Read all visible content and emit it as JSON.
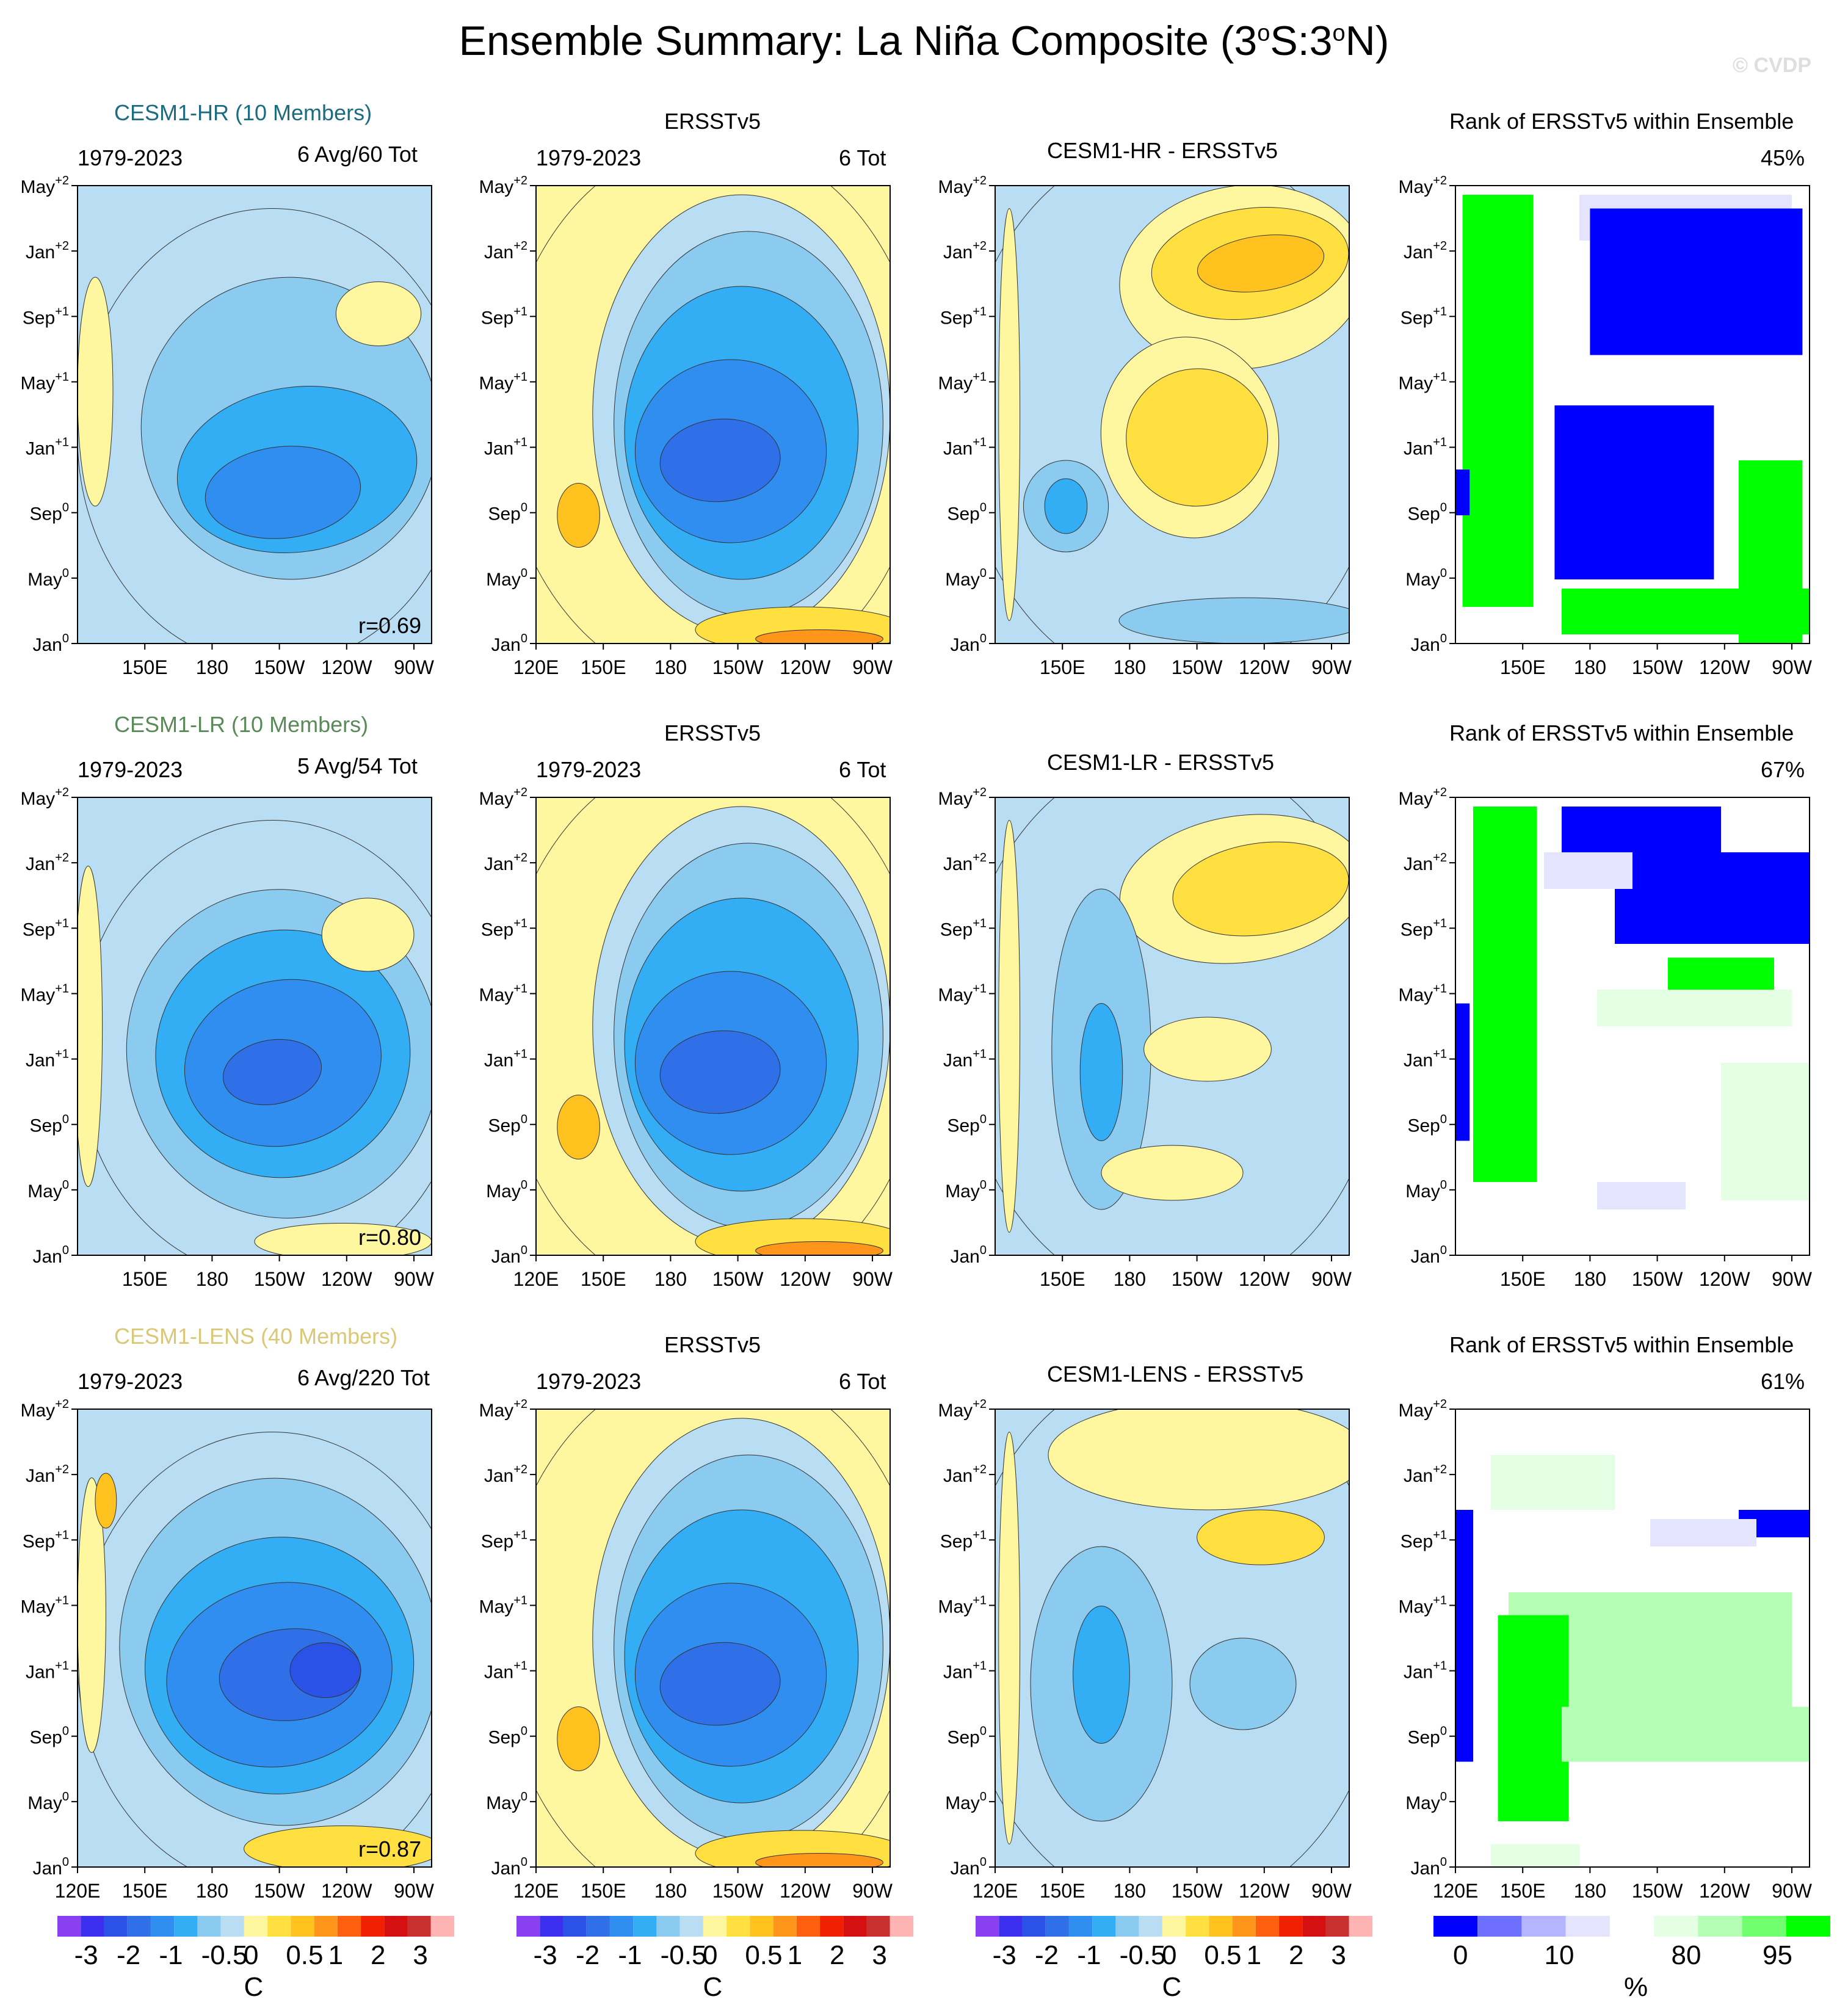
{
  "title_main": "Ensemble Summary: La Niña Composite (3",
  "title_sup1": "o",
  "title_mid": "S:3",
  "title_sup2": "o",
  "title_end": "N)",
  "watermark": "© CVDP",
  "colors": {
    "diverging": [
      "#8a3ff0",
      "#3d2ff0",
      "#2b52e6",
      "#2f6fe8",
      "#2f8ef0",
      "#33aef5",
      "#8ccbf0",
      "#b9def3",
      "#fff7a0",
      "#ffe040",
      "#ffc21f",
      "#ff951a",
      "#ff6010",
      "#f02000",
      "#d41010",
      "#c83030",
      "#ffb4b4"
    ],
    "rank": [
      "#0000ff",
      "#6f6fff",
      "#b4b4ff",
      "#e4e4ff",
      "#ffffff",
      "#e4ffe4",
      "#b4ffb4",
      "#6fff6f",
      "#00ff00"
    ],
    "ensemble_label_hr": "#1c6b80",
    "ensemble_label_lr": "#5a8a5a",
    "ensemble_label_lens": "#d8c878"
  },
  "y_ticks": [
    {
      "b": "Jan",
      "s": "0"
    },
    {
      "b": "May",
      "s": "0"
    },
    {
      "b": "Sep",
      "s": "0"
    },
    {
      "b": "Jan",
      "s": "+1"
    },
    {
      "b": "May",
      "s": "+1"
    },
    {
      "b": "Sep",
      "s": "+1"
    },
    {
      "b": "Jan",
      "s": "+2"
    },
    {
      "b": "May",
      "s": "+2"
    }
  ],
  "x_ticks_full": [
    "120E",
    "150E",
    "180",
    "150W",
    "120W",
    "90W"
  ],
  "x_ticks_short": [
    "150E",
    "180",
    "150W",
    "120W",
    "90W"
  ],
  "rows": [
    {
      "ensemble": {
        "label": "CESM1-HR (10 Members)",
        "period": "1979-2023",
        "count": "6 Avg/60 Tot",
        "r": "r=0.69"
      },
      "obs": {
        "title": "ERSSTv5",
        "period": "1979-2023",
        "count": "6 Tot"
      },
      "diff": {
        "title": "CESM1-HR - ERSSTv5"
      },
      "rank": {
        "title": "Rank of ERSSTv5 within Ensemble",
        "pct": "45%"
      }
    },
    {
      "ensemble": {
        "label": "CESM1-LR (10 Members)",
        "period": "1979-2023",
        "count": "5 Avg/54 Tot",
        "r": "r=0.80"
      },
      "obs": {
        "title": "ERSSTv5",
        "period": "1979-2023",
        "count": "6 Tot"
      },
      "diff": {
        "title": "CESM1-LR - ERSSTv5"
      },
      "rank": {
        "title": "Rank of ERSSTv5 within Ensemble",
        "pct": "67%"
      }
    },
    {
      "ensemble": {
        "label": "CESM1-LENS (40 Members)",
        "period": "1979-2023",
        "count": "6 Avg/220 Tot",
        "r": "r=0.87"
      },
      "obs": {
        "title": "ERSSTv5",
        "period": "1979-2023",
        "count": "6 Tot"
      },
      "diff": {
        "title": "CESM1-LENS - ERSSTv5"
      },
      "rank": {
        "title": "Rank of ERSSTv5 within Ensemble",
        "pct": "61%"
      }
    }
  ],
  "colorbars": [
    {
      "labels": [
        "-3",
        "-2",
        "-1",
        "-0.5",
        "0",
        "0.5",
        "1",
        "2",
        "3"
      ],
      "unit": "C"
    },
    {
      "labels": [
        "-3",
        "-2",
        "-1",
        "-0.5",
        "0",
        "0.5",
        "1",
        "2",
        "3"
      ],
      "unit": "C"
    },
    {
      "labels": [
        "-3",
        "-2",
        "-1",
        "-0.5",
        "0",
        "0.5",
        "1",
        "2",
        "3"
      ],
      "unit": "C"
    },
    {
      "labels": [
        "0",
        "10",
        "80",
        "95"
      ],
      "unit": "%"
    }
  ],
  "chart_data": {
    "type": "heatmap",
    "title": "Ensemble Summary: La Niña Composite (3°S:3°N)",
    "description_axes": {
      "x": "Longitude (120E to ~80W)",
      "y": "Month relative to event (Jan0 to May+2)"
    },
    "x_ticks": [
      "120E",
      "150E",
      "180",
      "150W",
      "120W",
      "90W"
    ],
    "y_ticks": [
      "Jan0",
      "May0",
      "Sep0",
      "Jan+1",
      "May+1",
      "Sep+1",
      "Jan+2",
      "May+2"
    ],
    "contour_levels_C": [
      -3,
      -2.5,
      -2,
      -1.5,
      -1,
      -0.75,
      -0.5,
      -0.25,
      0,
      0.25,
      0.5,
      0.75,
      1,
      1.5,
      2,
      2.5,
      3
    ],
    "rank_levels_pct": [
      0,
      5,
      10,
      20,
      80,
      90,
      95,
      100
    ],
    "panels": [
      {
        "row": 1,
        "col": 1,
        "name": "CESM1-HR (10 Members)",
        "period": "1979-2023",
        "count": "6 Avg/60 Tot",
        "pattern_corr": 0.69,
        "approx_min_C": -1.5,
        "min_location": "160W–120W, Oct0–Jan+1"
      },
      {
        "row": 1,
        "col": 2,
        "name": "ERSSTv5",
        "period": "1979-2023",
        "count": "6 Tot",
        "approx_min_C": -2.0,
        "min_location": "170W–130W, Nov0–Jan+1"
      },
      {
        "row": 1,
        "col": 3,
        "name": "CESM1-HR - ERSSTv5",
        "approx_max_C": 1.0,
        "max_location": "150W–100W, Dec+1–Feb+2"
      },
      {
        "row": 1,
        "col": 4,
        "name": "Rank of ERSSTv5 within Ensemble",
        "overall_pct": 45
      },
      {
        "row": 2,
        "col": 1,
        "name": "CESM1-LR (10 Members)",
        "period": "1979-2023",
        "count": "5 Avg/54 Tot",
        "pattern_corr": 0.8,
        "approx_min_C": -2.0,
        "min_location": "170W–120W, Oct0–Jan+1"
      },
      {
        "row": 2,
        "col": 2,
        "name": "ERSSTv5",
        "period": "1979-2023",
        "count": "6 Tot",
        "approx_min_C": -2.0
      },
      {
        "row": 2,
        "col": 3,
        "name": "CESM1-LR - ERSSTv5",
        "approx_max_C": 1.0
      },
      {
        "row": 2,
        "col": 4,
        "name": "Rank of ERSSTv5 within Ensemble",
        "overall_pct": 67
      },
      {
        "row": 3,
        "col": 1,
        "name": "CESM1-LENS (40 Members)",
        "period": "1979-2023",
        "count": "6 Avg/220 Tot",
        "pattern_corr": 0.87,
        "approx_min_C": -2.5,
        "min_location": "150W–120W, Nov0–Jan+1"
      },
      {
        "row": 3,
        "col": 2,
        "name": "ERSSTv5",
        "period": "1979-2023",
        "count": "6 Tot",
        "approx_min_C": -2.0
      },
      {
        "row": 3,
        "col": 3,
        "name": "CESM1-LENS - ERSSTv5",
        "approx_max_C": 0.75
      },
      {
        "row": 3,
        "col": 4,
        "name": "Rank of ERSSTv5 within Ensemble",
        "overall_pct": 61
      }
    ]
  }
}
